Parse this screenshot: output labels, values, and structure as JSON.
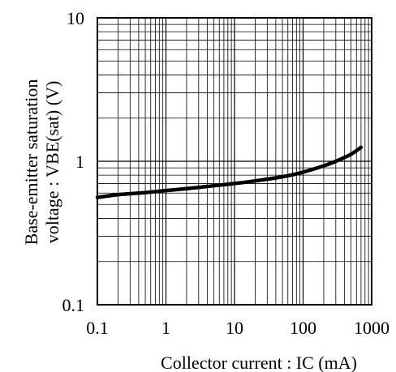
{
  "chart_data": {
    "type": "line",
    "title": "",
    "xlabel": "Collector current : IC (mA)",
    "ylabel_line1": "Base-emitter saturation",
    "ylabel_line2": "voltage : VBE(sat) (V)",
    "x_scale": "log",
    "y_scale": "log",
    "xlim": [
      0.1,
      1000
    ],
    "ylim": [
      0.1,
      10
    ],
    "x_ticks": [
      {
        "value": 0.1,
        "label": "0.1"
      },
      {
        "value": 1,
        "label": "1"
      },
      {
        "value": 10,
        "label": "10"
      },
      {
        "value": 100,
        "label": "100"
      },
      {
        "value": 1000,
        "label": "1000"
      }
    ],
    "y_ticks": [
      {
        "value": 0.1,
        "label": "0.1"
      },
      {
        "value": 1,
        "label": "1"
      },
      {
        "value": 10,
        "label": "10"
      }
    ],
    "grid": true,
    "legend": "none",
    "line_color": "#000000",
    "series": [
      {
        "values": [
          {
            "x": 0.1,
            "y": 0.56
          },
          {
            "x": 0.2,
            "y": 0.585
          },
          {
            "x": 0.5,
            "y": 0.605
          },
          {
            "x": 1,
            "y": 0.625
          },
          {
            "x": 2,
            "y": 0.645
          },
          {
            "x": 5,
            "y": 0.675
          },
          {
            "x": 10,
            "y": 0.7
          },
          {
            "x": 20,
            "y": 0.73
          },
          {
            "x": 50,
            "y": 0.78
          },
          {
            "x": 100,
            "y": 0.84
          },
          {
            "x": 200,
            "y": 0.93
          },
          {
            "x": 300,
            "y": 1.0
          },
          {
            "x": 500,
            "y": 1.12
          },
          {
            "x": 700,
            "y": 1.25
          }
        ]
      }
    ]
  }
}
